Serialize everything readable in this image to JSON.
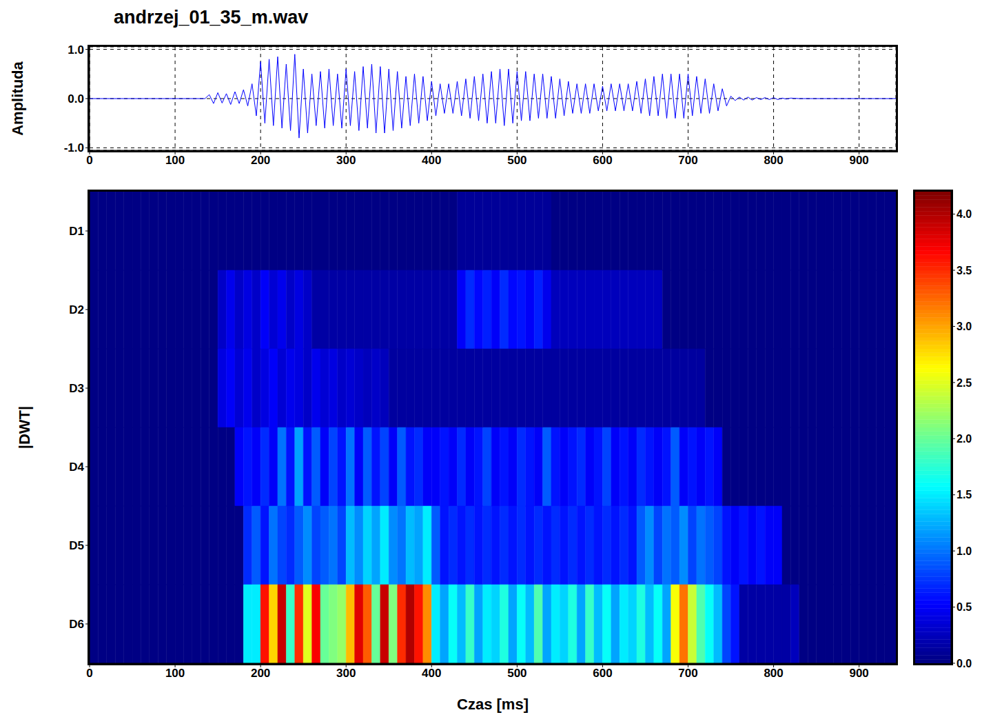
{
  "chart_data": [
    {
      "type": "line",
      "title": "andrzej_01_35_m.wav",
      "ylabel": "Amplituda",
      "color": "#0000ff",
      "grid": true,
      "xlim": [
        0,
        943
      ],
      "xticks": [
        0,
        100,
        200,
        300,
        400,
        500,
        600,
        700,
        800,
        900
      ],
      "ylim": [
        -1.05,
        1.05
      ],
      "yticks": [
        {
          "value": -1,
          "label": "-1.0"
        },
        {
          "value": 0,
          "label": "0.0"
        },
        {
          "value": 1,
          "label": "1.0"
        }
      ],
      "x": [
        0,
        135,
        140,
        145,
        150,
        155,
        160,
        165,
        170,
        175,
        180,
        185,
        190,
        195,
        200,
        205,
        210,
        215,
        220,
        225,
        230,
        235,
        240,
        245,
        250,
        255,
        260,
        265,
        270,
        275,
        280,
        285,
        290,
        295,
        300,
        305,
        310,
        315,
        320,
        325,
        330,
        335,
        340,
        345,
        350,
        355,
        360,
        365,
        370,
        375,
        380,
        385,
        390,
        395,
        400,
        405,
        410,
        415,
        420,
        425,
        430,
        435,
        440,
        445,
        450,
        455,
        460,
        465,
        470,
        475,
        480,
        485,
        490,
        495,
        500,
        505,
        510,
        515,
        520,
        525,
        530,
        535,
        540,
        545,
        550,
        555,
        560,
        565,
        570,
        575,
        580,
        585,
        590,
        595,
        600,
        605,
        610,
        615,
        620,
        625,
        630,
        635,
        640,
        645,
        650,
        655,
        660,
        665,
        670,
        675,
        680,
        685,
        690,
        695,
        700,
        705,
        710,
        715,
        720,
        725,
        730,
        735,
        740,
        745,
        750,
        755,
        760,
        765,
        770,
        775,
        780,
        785,
        790,
        795,
        800,
        805,
        810,
        815,
        820,
        830,
        943
      ],
      "values": [
        0,
        0,
        0.08,
        -0.1,
        0.12,
        -0.09,
        0.1,
        -0.12,
        0.14,
        -0.1,
        0.18,
        -0.15,
        0.3,
        -0.35,
        0.75,
        -0.5,
        0.8,
        -0.55,
        0.85,
        -0.6,
        0.7,
        -0.65,
        0.9,
        -0.8,
        0.6,
        -0.7,
        0.5,
        -0.55,
        0.55,
        -0.6,
        0.6,
        -0.55,
        0.5,
        -0.6,
        0.6,
        -0.55,
        0.55,
        -0.65,
        0.65,
        -0.6,
        0.7,
        -0.7,
        0.65,
        -0.7,
        0.6,
        -0.65,
        0.55,
        -0.6,
        0.45,
        -0.55,
        0.5,
        -0.5,
        0.45,
        -0.45,
        0.35,
        -0.35,
        0.3,
        -0.3,
        0.3,
        -0.3,
        0.35,
        -0.35,
        0.4,
        -0.4,
        0.45,
        -0.45,
        0.5,
        -0.5,
        0.55,
        -0.5,
        0.6,
        -0.55,
        0.6,
        -0.5,
        0.55,
        -0.45,
        0.55,
        -0.45,
        0.5,
        -0.4,
        0.5,
        -0.4,
        0.45,
        -0.4,
        0.4,
        -0.35,
        0.35,
        -0.3,
        0.3,
        -0.3,
        0.3,
        -0.3,
        0.3,
        -0.25,
        0.25,
        -0.25,
        0.3,
        -0.25,
        0.3,
        -0.25,
        0.3,
        -0.25,
        0.35,
        -0.3,
        0.4,
        -0.35,
        0.45,
        -0.35,
        0.5,
        -0.4,
        0.5,
        -0.4,
        0.5,
        -0.4,
        0.5,
        -0.35,
        0.45,
        -0.3,
        0.4,
        -0.3,
        0.3,
        -0.25,
        0.2,
        -0.15,
        0.05,
        -0.04,
        0.03,
        -0.03,
        0.03,
        -0.03,
        0.02,
        -0.02,
        0.02,
        -0.02,
        0.02,
        -0.02,
        0.01,
        -0.01,
        0.01,
        0,
        0
      ]
    },
    {
      "type": "heatmap",
      "xlabel": "Czas [ms]",
      "ylabel": "|DWT|",
      "grid": false,
      "xlim": [
        0,
        943
      ],
      "xticks": [
        0,
        100,
        200,
        300,
        400,
        500,
        600,
        700,
        800,
        900
      ],
      "rows": [
        "D1",
        "D2",
        "D3",
        "D4",
        "D5",
        "D6"
      ],
      "x": [
        0,
        10,
        20,
        30,
        40,
        50,
        60,
        70,
        80,
        90,
        100,
        110,
        120,
        130,
        140,
        150,
        160,
        170,
        180,
        190,
        200,
        210,
        220,
        230,
        240,
        250,
        260,
        270,
        280,
        290,
        300,
        310,
        320,
        330,
        340,
        350,
        360,
        370,
        380,
        390,
        400,
        410,
        420,
        430,
        440,
        450,
        460,
        470,
        480,
        490,
        500,
        510,
        520,
        530,
        540,
        550,
        560,
        570,
        580,
        590,
        600,
        610,
        620,
        630,
        640,
        650,
        660,
        670,
        680,
        690,
        700,
        710,
        720,
        730,
        740,
        750,
        760,
        770,
        780,
        790,
        800,
        810,
        820,
        830,
        840,
        850,
        860,
        870,
        880,
        890,
        900,
        910,
        920,
        930,
        943
      ],
      "z": [
        [
          0.02,
          0.02,
          0.02,
          0.02,
          0.02,
          0.02,
          0.02,
          0.02,
          0.02,
          0.02,
          0.02,
          0.02,
          0.02,
          0.02,
          0.02,
          0.02,
          0.02,
          0.02,
          0.02,
          0.02,
          0.02,
          0.02,
          0.02,
          0.02,
          0.02,
          0.02,
          0.02,
          0.02,
          0.02,
          0.02,
          0.02,
          0.02,
          0.02,
          0.02,
          0.02,
          0.02,
          0.02,
          0.02,
          0.02,
          0.02,
          0.02,
          0.02,
          0.02,
          0.1,
          0.1,
          0.1,
          0.1,
          0.1,
          0.1,
          0.1,
          0.1,
          0.1,
          0.1,
          0.1,
          0.02,
          0.02,
          0.02,
          0.02,
          0.02,
          0.02,
          0.02,
          0.02,
          0.02,
          0.02,
          0.02,
          0.02,
          0.02,
          0.02,
          0.02,
          0.02,
          0.02,
          0.02,
          0.02,
          0.02,
          0.02,
          0.02,
          0.02,
          0.02,
          0.02,
          0.02,
          0.02,
          0.02,
          0.02,
          0.02,
          0.02,
          0.02,
          0.02,
          0.02,
          0.02,
          0.02,
          0.02,
          0.02,
          0.02,
          0.02
        ],
        [
          0.02,
          0.02,
          0.02,
          0.02,
          0.02,
          0.02,
          0.02,
          0.02,
          0.02,
          0.02,
          0.02,
          0.02,
          0.02,
          0.02,
          0.02,
          0.3,
          0.45,
          0.3,
          0.4,
          0.3,
          0.5,
          0.35,
          0.45,
          0.3,
          0.4,
          0.3,
          0.15,
          0.15,
          0.15,
          0.15,
          0.15,
          0.15,
          0.15,
          0.15,
          0.15,
          0.15,
          0.15,
          0.15,
          0.15,
          0.15,
          0.15,
          0.15,
          0.15,
          0.5,
          0.7,
          0.55,
          0.65,
          0.5,
          0.7,
          0.55,
          0.6,
          0.5,
          0.65,
          0.45,
          0.25,
          0.25,
          0.25,
          0.25,
          0.25,
          0.25,
          0.25,
          0.25,
          0.25,
          0.25,
          0.25,
          0.25,
          0.25,
          0.02,
          0.02,
          0.02,
          0.02,
          0.02,
          0.02,
          0.02,
          0.02,
          0.02,
          0.02,
          0.02,
          0.02,
          0.02,
          0.02,
          0.02,
          0.02,
          0.02,
          0.02,
          0.02,
          0.02,
          0.02,
          0.02,
          0.02,
          0.02,
          0.02,
          0.02,
          0.02
        ],
        [
          0.02,
          0.02,
          0.02,
          0.02,
          0.02,
          0.02,
          0.02,
          0.02,
          0.02,
          0.02,
          0.02,
          0.02,
          0.02,
          0.02,
          0.02,
          0.4,
          0.5,
          0.35,
          0.45,
          0.3,
          0.4,
          0.5,
          0.35,
          0.45,
          0.4,
          0.3,
          0.45,
          0.35,
          0.4,
          0.3,
          0.35,
          0.3,
          0.25,
          0.3,
          0.25,
          0.13,
          0.13,
          0.13,
          0.13,
          0.13,
          0.13,
          0.13,
          0.13,
          0.13,
          0.13,
          0.13,
          0.13,
          0.13,
          0.13,
          0.13,
          0.13,
          0.13,
          0.13,
          0.13,
          0.13,
          0.13,
          0.13,
          0.13,
          0.13,
          0.13,
          0.13,
          0.13,
          0.13,
          0.13,
          0.13,
          0.13,
          0.13,
          0.13,
          0.13,
          0.13,
          0.13,
          0.13,
          0.02,
          0.02,
          0.02,
          0.02,
          0.02,
          0.02,
          0.02,
          0.02,
          0.02,
          0.02,
          0.02,
          0.02,
          0.02,
          0.02,
          0.02,
          0.02,
          0.02,
          0.02,
          0.02,
          0.02,
          0.02,
          0.02
        ],
        [
          0.02,
          0.02,
          0.02,
          0.02,
          0.02,
          0.02,
          0.02,
          0.02,
          0.02,
          0.02,
          0.02,
          0.02,
          0.02,
          0.02,
          0.02,
          0.02,
          0.02,
          0.5,
          0.6,
          0.5,
          0.7,
          0.5,
          1.0,
          0.6,
          1.2,
          0.6,
          0.9,
          0.5,
          0.8,
          0.6,
          1.0,
          0.5,
          0.9,
          0.6,
          0.8,
          0.5,
          0.9,
          0.6,
          0.7,
          0.5,
          0.5,
          0.6,
          0.5,
          0.7,
          0.5,
          0.6,
          0.8,
          0.5,
          0.6,
          0.5,
          0.7,
          0.6,
          0.5,
          0.9,
          0.6,
          0.5,
          0.6,
          0.7,
          0.5,
          0.6,
          0.8,
          0.5,
          0.6,
          0.5,
          0.7,
          0.6,
          0.5,
          0.6,
          0.9,
          0.5,
          0.6,
          0.5,
          0.6,
          0.5,
          0.02,
          0.02,
          0.02,
          0.02,
          0.02,
          0.02,
          0.02,
          0.02,
          0.02,
          0.02,
          0.02,
          0.02,
          0.02,
          0.02,
          0.02,
          0.02,
          0.02,
          0.02,
          0.02,
          0.02
        ],
        [
          0.02,
          0.02,
          0.02,
          0.02,
          0.02,
          0.02,
          0.02,
          0.02,
          0.02,
          0.02,
          0.02,
          0.02,
          0.02,
          0.02,
          0.02,
          0.02,
          0.02,
          0.02,
          0.7,
          0.9,
          0.6,
          1.0,
          0.8,
          0.7,
          0.9,
          1.1,
          0.8,
          0.9,
          1.0,
          0.8,
          1.3,
          1.1,
          1.4,
          1.2,
          1.5,
          1.1,
          1.0,
          1.3,
          1.2,
          1.5,
          0.9,
          0.6,
          0.7,
          0.6,
          0.7,
          0.6,
          0.7,
          0.6,
          0.7,
          0.6,
          0.7,
          0.6,
          0.7,
          0.6,
          0.7,
          0.6,
          0.7,
          0.6,
          0.7,
          0.6,
          0.7,
          0.6,
          0.7,
          0.6,
          0.9,
          1.1,
          0.8,
          1.0,
          0.9,
          1.1,
          0.8,
          1.0,
          0.9,
          0.8,
          0.6,
          0.5,
          0.6,
          0.5,
          0.6,
          0.5,
          0.5,
          0.02,
          0.02,
          0.02,
          0.02,
          0.02,
          0.02,
          0.02,
          0.02,
          0.02,
          0.02,
          0.02,
          0.02,
          0.02
        ],
        [
          0.02,
          0.02,
          0.02,
          0.02,
          0.02,
          0.02,
          0.02,
          0.02,
          0.02,
          0.02,
          0.02,
          0.02,
          0.02,
          0.02,
          0.02,
          0.02,
          0.02,
          0.02,
          1.5,
          1.5,
          3.6,
          2.8,
          3.9,
          1.8,
          3.5,
          2.5,
          3.7,
          2.0,
          2.1,
          2.2,
          2.9,
          3.8,
          3.3,
          2.0,
          3.9,
          2.1,
          3.5,
          4.0,
          3.6,
          3.1,
          1.5,
          1.2,
          1.6,
          1.3,
          1.8,
          1.2,
          1.5,
          1.4,
          1.7,
          1.2,
          1.6,
          1.3,
          1.9,
          1.2,
          1.5,
          1.4,
          1.7,
          1.2,
          1.8,
          1.3,
          1.6,
          1.2,
          1.5,
          1.4,
          1.7,
          1.3,
          1.6,
          1.2,
          2.6,
          3.2,
          2.4,
          1.9,
          1.6,
          1.3,
          0.8,
          0.6,
          0.15,
          0.15,
          0.15,
          0.15,
          0.15,
          0.15,
          0.25,
          0.02,
          0.02,
          0.02,
          0.02,
          0.02,
          0.02,
          0.02,
          0.02,
          0.02,
          0.02,
          0.02
        ]
      ],
      "colorbar": {
        "range": [
          0,
          4.2
        ],
        "ticks": [
          {
            "value": 0,
            "label": "0.0"
          },
          0.5,
          {
            "value": 1,
            "label": "1.0"
          },
          1.5,
          {
            "value": 2,
            "label": "2.0"
          },
          2.5,
          {
            "value": 3,
            "label": "3.0"
          },
          3.5,
          {
            "value": 4,
            "label": "4.0"
          }
        ]
      }
    }
  ]
}
